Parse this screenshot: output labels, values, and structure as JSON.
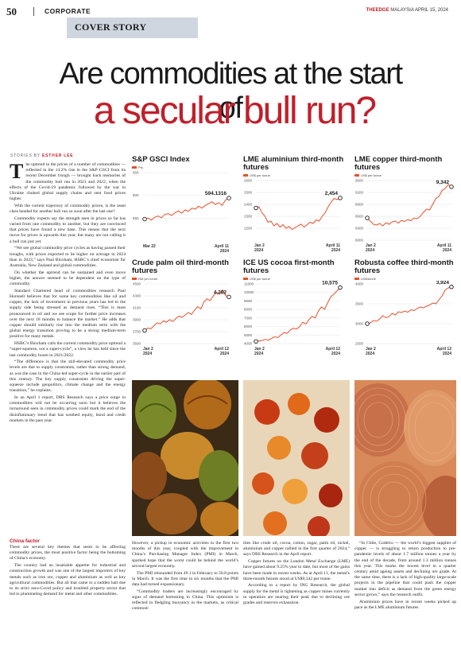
{
  "header": {
    "page_number": "50",
    "section": "CORPORATE",
    "brand": "THEEDGE",
    "edition": "MALAYSIA",
    "date": "APRIL 15, 2024"
  },
  "cover_label": "COVER STORY",
  "headline": {
    "line1": "Are commodities at the start of",
    "line2": "a secular bull run?"
  },
  "byline": {
    "prefix": "STORIES BY",
    "author": "ESTHER LEE"
  },
  "article": {
    "col1": [
      "he uptrend in the prices of a number of commodities — reflected in the 14.2% rise in the S&P GSCI from its recent December trough — brought back memories of the commodity bull run in 2021 and 2022, when the effects of the Covid-19 pandemic followed by the war in Ukraine choked global supply chains and sent food prices higher.",
      "With the current trajectory of commodity prices, is the asset class headed for another bull run so soon after the last one?",
      "Commodity experts say the strength seen in prices so far has varied from one commodity to another, but they are convinced that prices have found a new base. This means that the next move for prices is upwards this year, but many are not calling it a bull run just yet.",
      "“We see global commodity price cycles as having passed their troughs, with prices expected to be higher on average in 2024 than in 2023,” says Paul Bloxham, HSBC’s chief economist for Australia, New Zealand and global commodities.",
      "On whether the uptrend can be sustained and even move higher, the answer seemed to be dependent on the type of commodity.",
      "Standard Chartered head of commodities research Paul Horsnell believes that for some key commodities like oil and copper, the lack of investment in previous years has led to the supply side being stressed as demand rises. “This is most pronounced in oil and we see scope for further price increases over the next 18 months to balance the market.” He adds that copper should similarly rise into the medium term with the global energy transition proving to be a strong medium-term positive for many metals.",
      "HSBC’s Bloxham calls the current commodity price uptrend a “super-squeeze, not a super-cycle”, a view he has held since the last commodity boom in 2021/2022.",
      "“The difference is that the still-elevated commodity price levels are due to supply constraints, rather than strong demand, as was the case in the China-led super-cycle in the earlier part of this century. The key supply constraints driving the super-squeeze include geopolitics, climate change and the energy transition,” he explains.",
      "In an April 1 report, DBS Research says a price surge in commodities will not be occurring soon but it believes the turnaround seen in commodity prices could mark the end of the disinflationary trend that has soothed equity, bond and credit markets in the past year."
    ],
    "subhead": "China factor",
    "col1b": [
      "There are several key themes that seem to be affecting commodity prices, the most positive factor being the bottoming of China’s economy.",
      "The country had an insatiable appetite for industrial and construction growth and was one of the largest importers of key metals such as iron ore, copper and aluminium as well as key agricultural commodities. But all that came to a sudden halt due to its strict zero-Covid policy and troubled property sector that led to plummeting demand for metal and other commodities."
    ],
    "col2": [
      "However, a pickup in economic activities in the first two months of this year, coupled with the improvement in China’s Purchasing Manager Index (PMI) in March, sparked hope that the worst could be behind the world’s second largest economy.",
      "The PMI rebounded from 49.1 in February to 50.8 points in March. It was the first time in six months that the PMI data had turned expansionary.",
      "“Commodity traders are increasingly encouraged by signs of demand bottoming in China. This optimism is reflected in fledgling buoyancy in the markets, as critical commod-"
    ],
    "col3": [
      "ities like crude oil, cocoa, cotton, sugar, palm oil, nickel, aluminium and copper rallied in the first quarter of 2024,” says DBS Research in the April report.",
      "Copper futures on the London Metal Exchange (LME) have gained about 9.25% year to date, but most of the gains have been made in recent weeks. As at April 11, the metal’s three-month futures stood at US$9,342 per tonne.",
      "According to a report by ING Research, the global supply for the metal is tightening as copper mines currently in operation are nearing their peak due to declining ore grades and reserves exhaustion."
    ],
    "col4": [
      "“In Chile, Codelco — the world’s biggest supplier of copper — is struggling to return production to pre-pandemic levels of about 1.7 million tonnes a year by the end of the decade, from around 1.3 million tonnes this year. This marks the lowest level in a quarter century amid ageing assets and declining ore grade. At the same time, there is a lack of high-quality large-scale projects in the pipeline that could push the copper market into deficit as demand from the green energy sector grows,” says the research outfit.",
      "Aluminium prices have in recent weeks picked up pace as the LME aluminium futures"
    ]
  },
  "chart_data": [
    {
      "type": "line",
      "title": "S&P GSCI Index",
      "unit": "Pts",
      "x_start": "Mar 22",
      "x_end": "April 11",
      "year_start": "",
      "year_end": "2024",
      "ylim": [
        500,
        650
      ],
      "yticks": [
        550,
        600,
        650
      ],
      "last_value": "594.1316",
      "values": [
        548,
        550,
        546,
        552,
        555,
        551,
        558,
        560,
        556,
        562,
        566,
        561,
        568,
        565,
        572,
        570,
        576,
        572,
        578,
        582,
        586,
        580,
        584,
        578,
        590,
        594
      ]
    },
    {
      "type": "line",
      "title": "LME aluminium third-month futures",
      "unit": "US$ per tonne",
      "x_start": "Jan 2",
      "x_end": "April 11",
      "year_start": "2024",
      "year_end": "2024",
      "ylim": [
        2100,
        2600
      ],
      "yticks": [
        2200,
        2300,
        2400,
        2500,
        2600
      ],
      "last_value": "2,454",
      "values": [
        2370,
        2380,
        2330,
        2300,
        2250,
        2260,
        2220,
        2240,
        2210,
        2230,
        2200,
        2215,
        2190,
        2205,
        2220,
        2235,
        2210,
        2230,
        2250,
        2240,
        2270,
        2260,
        2300,
        2330,
        2380,
        2420,
        2450,
        2440,
        2454
      ]
    },
    {
      "type": "line",
      "title": "LME copper third-month futures",
      "unit": "US$ per tonne",
      "x_start": "Jan 2",
      "x_end": "April 11",
      "year_start": "2024",
      "year_end": "2024",
      "ylim": [
        8000,
        9500
      ],
      "yticks": [
        8000,
        8300,
        8600,
        8900,
        9200,
        9500
      ],
      "last_value": "9,342",
      "values": [
        8560,
        8480,
        8400,
        8380,
        8420,
        8360,
        8440,
        8400,
        8460,
        8480,
        8430,
        8500,
        8470,
        8520,
        8490,
        8560,
        8540,
        8600,
        8700,
        8780,
        8760,
        8900,
        9050,
        9100,
        9250,
        9300,
        9400,
        9342
      ]
    },
    {
      "type": "line",
      "title": "Crude palm oil third-month futures",
      "unit": "RM per tonne",
      "x_start": "Jan 2",
      "x_end": "April 12",
      "year_start": "2024",
      "year_end": "2024",
      "ylim": [
        3500,
        4500
      ],
      "yticks": [
        3500,
        3700,
        3900,
        4100,
        4300,
        4500
      ],
      "last_value": "4,282",
      "values": [
        3720,
        3760,
        3750,
        3800,
        3850,
        3830,
        3880,
        3860,
        3900,
        3870,
        3920,
        3960,
        3940,
        3980,
        4020,
        3990,
        4060,
        4120,
        4080,
        4200,
        4250,
        4220,
        4300,
        4360,
        4330,
        4400,
        4300,
        4282
      ]
    },
    {
      "type": "line",
      "title": "ICE US cocoa first-month futures",
      "unit": "US$ per tonne",
      "x_start": "Jan 2",
      "x_end": "April 12",
      "year_start": "2024",
      "year_end": "2024",
      "ylim": [
        4000,
        11000
      ],
      "yticks": [
        4000,
        5000,
        6000,
        7000,
        8000,
        9000,
        10000,
        11000
      ],
      "last_value": "10,575",
      "values": [
        4250,
        4300,
        4350,
        4500,
        4400,
        4600,
        4800,
        4700,
        5000,
        5300,
        5200,
        5600,
        5800,
        5700,
        6000,
        6500,
        6300,
        6800,
        7200,
        7000,
        7800,
        8300,
        8000,
        8800,
        9500,
        9800,
        10200,
        10575
      ]
    },
    {
      "type": "line",
      "title": "Robusta coffee third-month futures",
      "unit": "US$/tonne",
      "x_start": "Jan 2",
      "x_end": "April 12",
      "year_start": "2024",
      "year_end": "2024",
      "ylim": [
        2500,
        4000
      ],
      "yticks": [
        2500,
        3000,
        3500,
        4000
      ],
      "last_value": "3,924",
      "values": [
        3000,
        3020,
        3080,
        3060,
        3120,
        3200,
        3150,
        3180,
        3260,
        3220,
        3300,
        3280,
        3320,
        3290,
        3350,
        3330,
        3380,
        3420,
        3400,
        3440,
        3470,
        3520,
        3500,
        3600,
        3700,
        3850,
        3900,
        3924
      ]
    }
  ],
  "photos": [
    {
      "name": "cocoa-pods-photo"
    },
    {
      "name": "palm-oil-fruit-photo"
    },
    {
      "name": "copper-wire-photo"
    }
  ]
}
